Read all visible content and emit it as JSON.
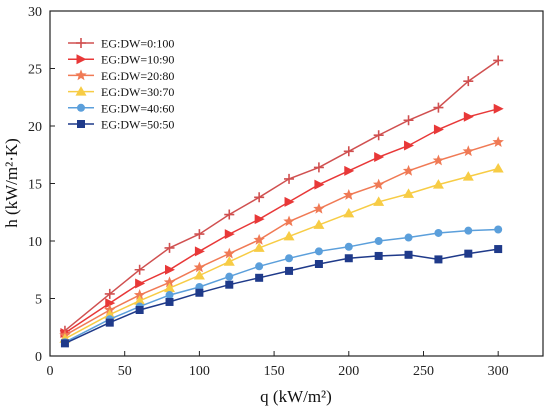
{
  "chart_data": {
    "type": "line",
    "xlabel": "q (kW/m²)",
    "ylabel": "h (kW/m²·K)",
    "xlim": [
      0,
      330
    ],
    "ylim": [
      0,
      30
    ],
    "xticks": [
      0,
      50,
      100,
      150,
      200,
      250,
      300
    ],
    "yticks": [
      0,
      5,
      10,
      15,
      20,
      25,
      30
    ],
    "grid": false,
    "legend_position": "top-left",
    "x": [
      10,
      40,
      60,
      80,
      100,
      120,
      140,
      160,
      180,
      200,
      220,
      240,
      260,
      280,
      300
    ],
    "series": [
      {
        "name": "EG:DW=0:100",
        "color": "#d05050",
        "marker": "plus",
        "values": [
          2.2,
          5.4,
          7.5,
          9.4,
          10.6,
          12.3,
          13.8,
          15.4,
          16.4,
          17.8,
          19.2,
          20.5,
          21.6,
          23.9,
          25.7
        ]
      },
      {
        "name": "EG:DW=10:90",
        "color": "#e83838",
        "marker": "triangle-right",
        "values": [
          2.0,
          4.6,
          6.3,
          7.5,
          9.1,
          10.6,
          11.9,
          13.4,
          14.9,
          16.1,
          17.3,
          18.3,
          19.7,
          20.8,
          21.5
        ]
      },
      {
        "name": "EG:DW=20:80",
        "color": "#f07a55",
        "marker": "star",
        "values": [
          1.8,
          4.0,
          5.3,
          6.4,
          7.7,
          8.9,
          10.1,
          11.7,
          12.8,
          14.0,
          14.9,
          16.1,
          17.0,
          17.8,
          18.6
        ]
      },
      {
        "name": "EG:DW=30:70",
        "color": "#f7cc45",
        "marker": "triangle-up",
        "values": [
          1.5,
          3.6,
          4.8,
          5.9,
          7.0,
          8.2,
          9.4,
          10.4,
          11.4,
          12.4,
          13.4,
          14.1,
          14.9,
          15.6,
          16.3
        ]
      },
      {
        "name": "EG:DW=40:60",
        "color": "#5b9fdb",
        "marker": "circle",
        "values": [
          1.2,
          3.2,
          4.3,
          5.3,
          6.0,
          6.9,
          7.8,
          8.5,
          9.1,
          9.5,
          10.0,
          10.3,
          10.7,
          10.9,
          11.0
        ]
      },
      {
        "name": "EG:DW=50:50",
        "color": "#1f3a8a",
        "marker": "square",
        "values": [
          1.1,
          2.9,
          4.0,
          4.7,
          5.5,
          6.2,
          6.8,
          7.4,
          8.0,
          8.5,
          8.7,
          8.8,
          8.4,
          8.9,
          9.3
        ]
      }
    ]
  }
}
